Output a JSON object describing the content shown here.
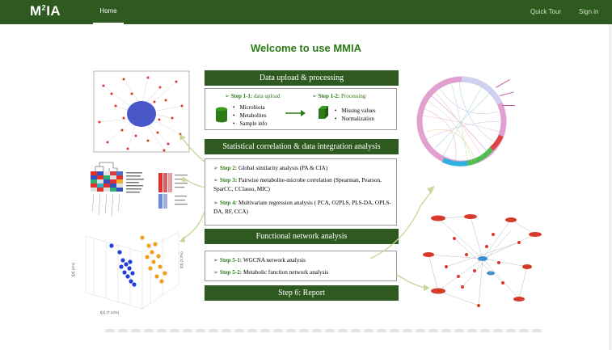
{
  "nav": {
    "brand": "M²IA",
    "brand_main": "M",
    "brand_sup": "2",
    "brand_rest": "IA",
    "home": "Home",
    "quick_tour": "Quick Tour",
    "sign_in": "Sign in"
  },
  "page": {
    "title": "Welcome to use MMIA"
  },
  "workflow": {
    "section1": {
      "header": "Data upload & processing",
      "step11_label": "Step 1-1:",
      "step11_text": "data upload",
      "step11_items": [
        "Microbiota",
        "Metabolites",
        "Sample info"
      ],
      "step12_label": "Step 1-2:",
      "step12_text": "Processing",
      "step12_items": [
        "Missing values",
        "Normalization"
      ]
    },
    "section2": {
      "header": "Statistical correlation & data integration analysis",
      "step2_label": "Step 2:",
      "step2_text": "Global similarity analysis (PA & CIA)",
      "step3_label": "Step 3:",
      "step3_text": "Pairwise metabolite-microbe correlation (Spearman, Pearson, SparCC, CClasso, MIC)",
      "step4_label": "Step 4:",
      "step4_text": "Multivariate regression analysis ( PCA, O2PLS, PLS-DA, OPLS-DA, RF, CCA)"
    },
    "section3": {
      "header": "Functional network analysis",
      "step51_label": "Step 5-1:",
      "step51_text": "WGCNA network analysis",
      "step52_label": "Step 5-2:",
      "step52_text": "Metabolic function network analysis"
    },
    "section4": {
      "header": "Step 6: Report"
    }
  },
  "figures": {
    "pca_axis_1": "t[1] (7.14%)",
    "pca_axis_2": "t[2] (4%)",
    "pca_axis_3": "t[3] (3.2%)"
  },
  "colors": {
    "brand_green": "#2e5a1f",
    "accent_green": "#2b7a16",
    "network_red": "#d83a2a",
    "network_blue": "#2a3ac0",
    "pca_blue": "#1f3fd6",
    "pca_orange": "#f0a020"
  }
}
